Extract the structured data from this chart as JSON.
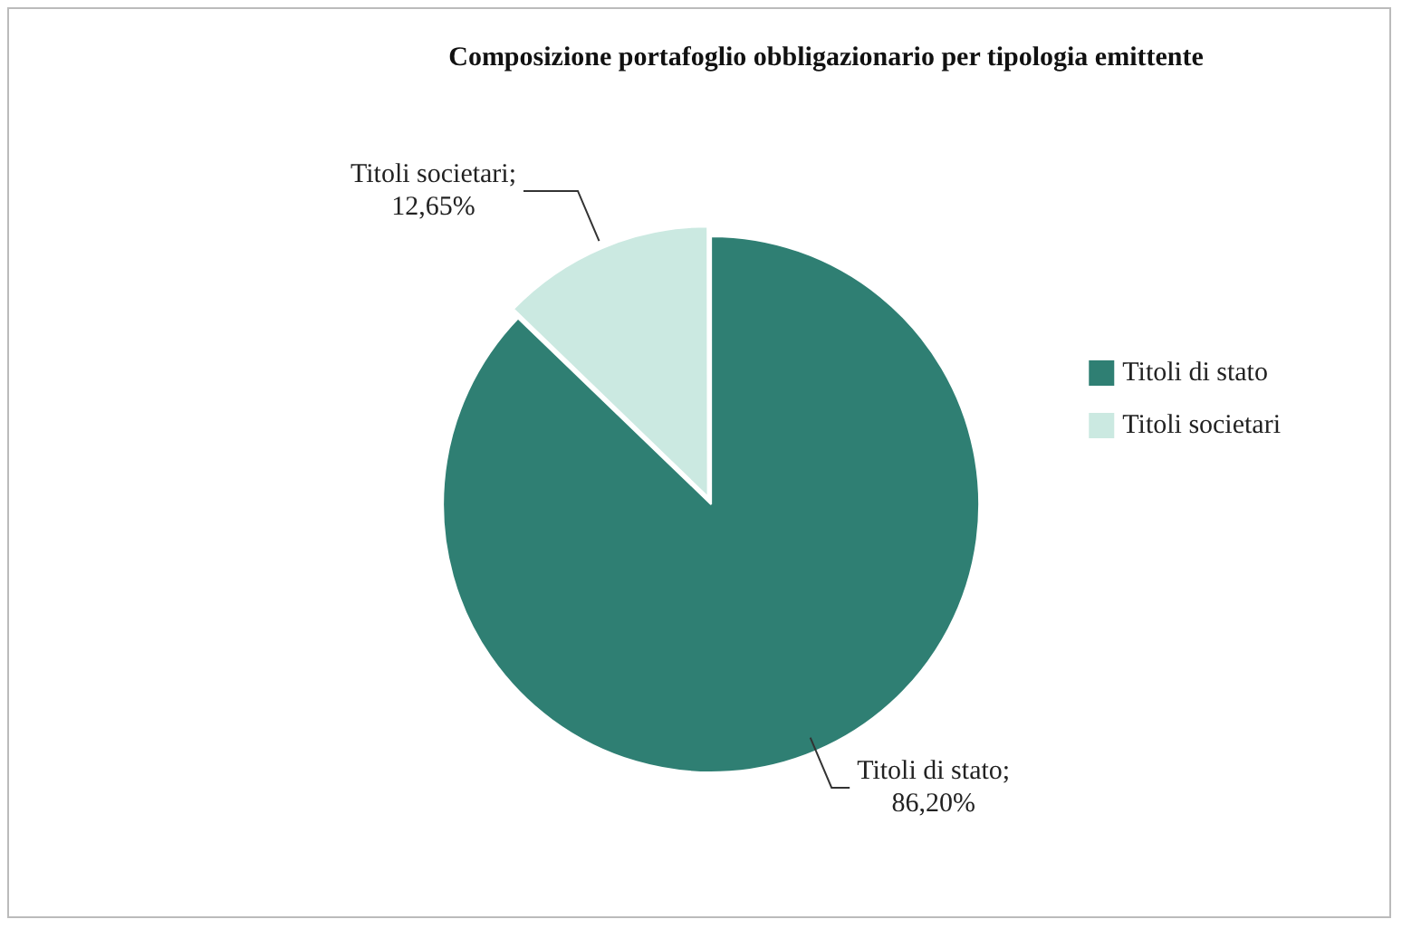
{
  "chart_data": {
    "type": "pie",
    "title": "Composizione portafoglio obbligazionario per tipologia emittente",
    "categories": [
      "Titoli di stato",
      "Titoli societari"
    ],
    "values": [
      86.2,
      12.65
    ],
    "colors": [
      "#2f7f73",
      "#cbe9e1"
    ],
    "value_labels": [
      "Titoli di stato; 86,20%",
      "Titoli societari; 12,65%"
    ],
    "legend": "right"
  }
}
